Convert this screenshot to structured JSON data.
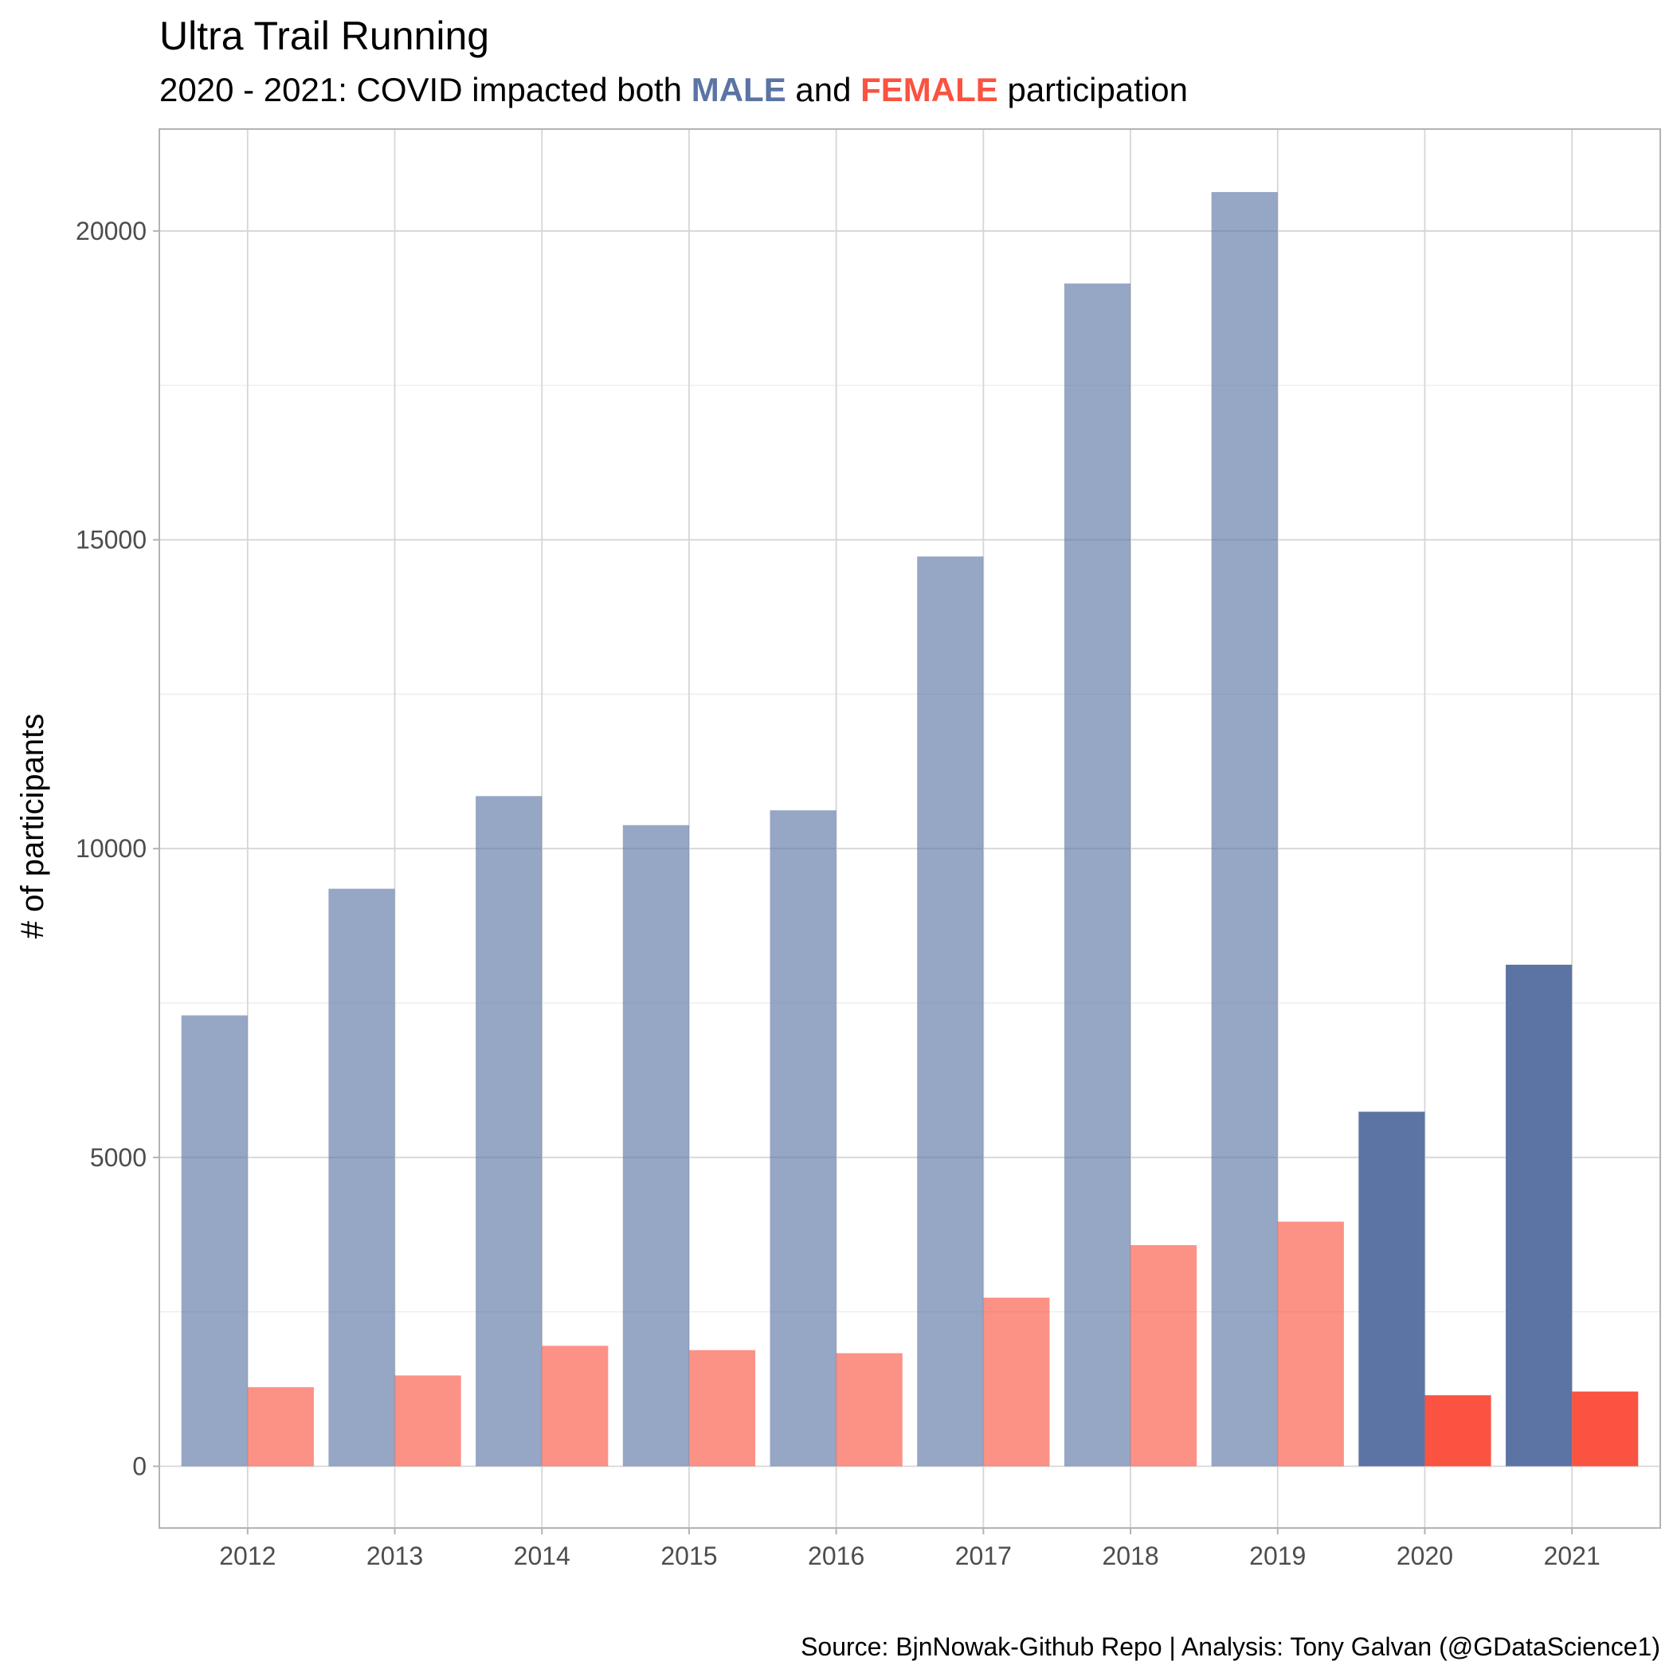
{
  "chart_data": {
    "type": "bar",
    "title": "Ultra Trail Running",
    "subtitle": {
      "prefix": "2020 - 2021: COVID impacted both ",
      "male_word": "MALE",
      "middle": " and ",
      "female_word": "FEMALE",
      "suffix": " participation"
    },
    "xlabel": "",
    "ylabel": "# of participants",
    "caption": "Source: BjnNowak-Github Repo  | Analysis: Tony Galvan (@GDataScience1)",
    "categories": [
      "2012",
      "2013",
      "2014",
      "2015",
      "2016",
      "2017",
      "2018",
      "2019",
      "2020",
      "2021"
    ],
    "series": [
      {
        "key": "male",
        "values": [
          7300,
          9350,
          10850,
          10380,
          10620,
          14730,
          19150,
          20630,
          5740,
          8120
        ]
      },
      {
        "key": "female",
        "values": [
          1280,
          1470,
          1950,
          1880,
          1830,
          2730,
          3580,
          3960,
          1150,
          1210
        ]
      }
    ],
    "highlight_categories": [
      "2020",
      "2021"
    ],
    "colors": {
      "male": "#5B74A4",
      "female": "#FA5341",
      "muted_opacity": 0.64
    },
    "ylim": [
      -1000,
      21650
    ],
    "y_ticks": [
      0,
      5000,
      10000,
      15000,
      20000
    ],
    "y_ticks_minor": [
      2500,
      7500,
      12500,
      17500
    ],
    "grid": true,
    "legend": "none"
  }
}
